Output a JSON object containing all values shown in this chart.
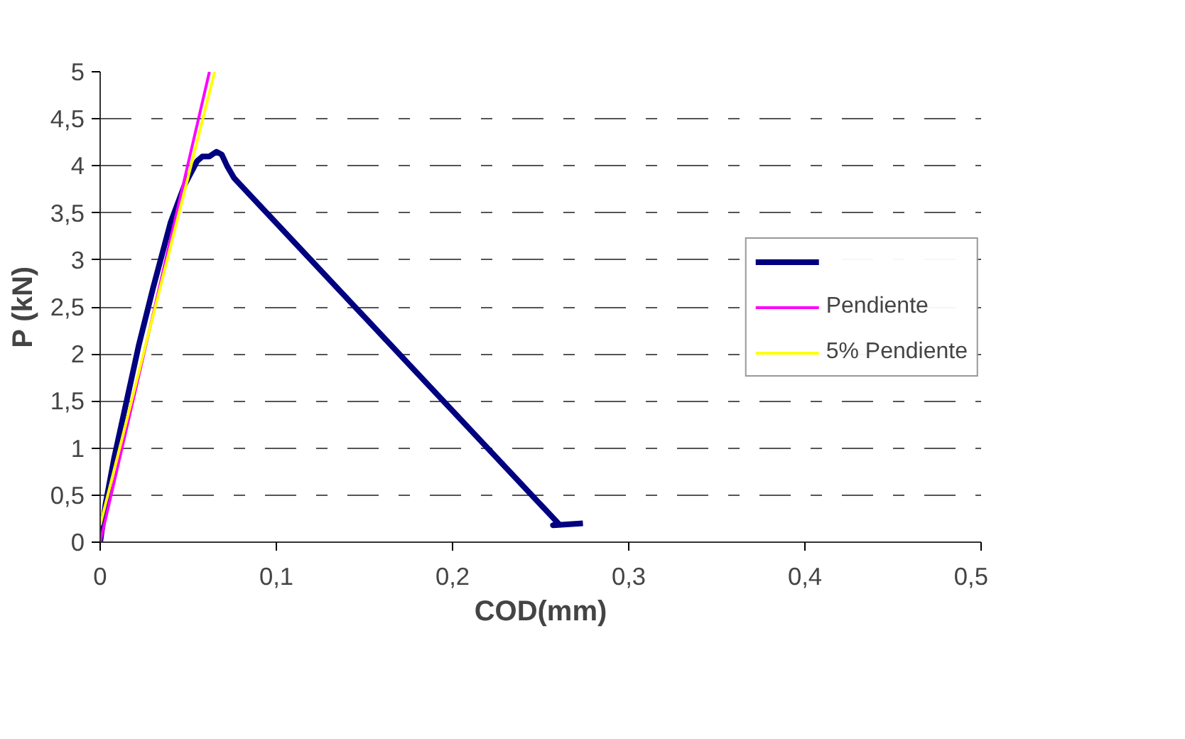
{
  "chart_data": {
    "type": "line",
    "xlabel": "COD(mm)",
    "ylabel": "P (kN)",
    "series": [
      {
        "color": "#000080",
        "x": [
          0,
          0.003,
          0.008,
          0.015,
          0.022,
          0.03,
          0.04,
          0.048,
          0.055,
          0.058,
          0.062,
          0.066,
          0.069,
          0.072,
          0.076,
          0.26,
          0.257,
          0.274
        ],
        "values": [
          0,
          0.4,
          0.9,
          1.5,
          2.1,
          2.7,
          3.4,
          3.8,
          4.05,
          4.1,
          4.1,
          4.15,
          4.12,
          4.0,
          3.87,
          0.2,
          0.18,
          0.2
        ]
      },
      {
        "name": "Pendiente",
        "color": "#ff00ff",
        "x": [
          0,
          0.062
        ],
        "values": [
          0,
          5
        ]
      },
      {
        "name": "5% Pendiente",
        "color": "#ffff00",
        "x": [
          0,
          0.065
        ],
        "values": [
          0.18,
          5
        ]
      }
    ],
    "xlim": [
      0,
      0.5
    ],
    "xticks": [
      {
        "value": 0,
        "label": "0"
      },
      {
        "value": 0.1,
        "label": "0,1"
      },
      {
        "value": 0.2,
        "label": "0,2"
      },
      {
        "value": 0.3,
        "label": "0,3"
      },
      {
        "value": 0.4,
        "label": "0,4"
      },
      {
        "value": 0.5,
        "label": "0,5"
      }
    ],
    "ylim": [
      0,
      5
    ],
    "yticks": [
      {
        "value": 0,
        "label": "0"
      },
      {
        "value": 0.5,
        "label": "0,5"
      },
      {
        "value": 1,
        "label": "1"
      },
      {
        "value": 1.5,
        "label": "1,5"
      },
      {
        "value": 2,
        "label": "2"
      },
      {
        "value": 2.5,
        "label": "2,5"
      },
      {
        "value": 3,
        "label": "3"
      },
      {
        "value": 3.5,
        "label": "3,5"
      },
      {
        "value": 4,
        "label": "4"
      },
      {
        "value": 4.5,
        "label": "4,5"
      },
      {
        "value": 5,
        "label": "5"
      }
    ],
    "grid": "y",
    "legend": "right",
    "line_style": "solid"
  }
}
